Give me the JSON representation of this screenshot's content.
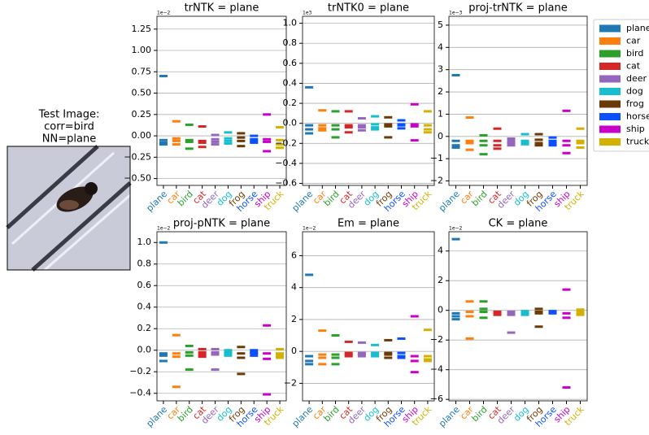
{
  "image_panel": {
    "title_lines": [
      "Test Image:",
      "corr=bird",
      "NN=plane"
    ]
  },
  "legend": [
    {
      "name": "plane",
      "color": "#1f77b4"
    },
    {
      "name": "car",
      "color": "#ff7f0e"
    },
    {
      "name": "bird",
      "color": "#2ca02c"
    },
    {
      "name": "cat",
      "color": "#d62728"
    },
    {
      "name": "deer",
      "color": "#9467bd"
    },
    {
      "name": "dog",
      "color": "#17becf"
    },
    {
      "name": "frog",
      "color": "#6b3a06"
    },
    {
      "name": "horse",
      "color": "#0a50ff"
    },
    {
      "name": "ship",
      "color": "#c800c8"
    },
    {
      "name": "truck",
      "color": "#d4b000"
    }
  ],
  "chart_data": [
    {
      "type": "dash",
      "title": "trNTK = plane",
      "scale_label": "1e−2",
      "categories": [
        "plane",
        "car",
        "bird",
        "cat",
        "deer",
        "dog",
        "frog",
        "horse",
        "ship",
        "truck"
      ],
      "values": [
        [
          0.7,
          -0.05,
          -0.1,
          -0.08
        ],
        [
          0.17,
          -0.03,
          -0.06,
          -0.1
        ],
        [
          0.13,
          -0.05,
          -0.07,
          -0.15
        ],
        [
          0.11,
          -0.06,
          -0.08,
          -0.13
        ],
        [
          0.01,
          -0.04,
          -0.07,
          -0.1
        ],
        [
          0.04,
          -0.03,
          -0.06,
          -0.09
        ],
        [
          0.03,
          -0.02,
          -0.06,
          -0.12
        ],
        [
          0.0,
          -0.04,
          -0.06,
          -0.08
        ],
        [
          0.25,
          -0.04,
          -0.07,
          -0.18
        ],
        [
          0.1,
          -0.05,
          -0.1,
          -0.14
        ]
      ],
      "ylim": [
        -0.58,
        1.4
      ],
      "yticks": [
        {
          "value": -0.5,
          "label": "−0.50"
        },
        {
          "value": -0.25,
          "label": "−0.25"
        },
        {
          "value": 0,
          "label": "0.00"
        },
        {
          "value": 0.25,
          "label": "0.25"
        },
        {
          "value": 0.5,
          "label": "0.50"
        },
        {
          "value": 0.75,
          "label": "0.75"
        },
        {
          "value": 1,
          "label": "1.00"
        },
        {
          "value": 1.25,
          "label": "1.25"
        }
      ],
      "grid": true
    },
    {
      "type": "dash",
      "title": "trNTK0 = plane",
      "scale_label": "1e3",
      "categories": [
        "plane",
        "car",
        "bird",
        "cat",
        "deer",
        "dog",
        "frog",
        "horse",
        "ship",
        "truck"
      ],
      "values": [
        [
          0.36,
          -0.02,
          -0.06,
          -0.1
        ],
        [
          0.13,
          -0.02,
          -0.05,
          -0.07
        ],
        [
          0.12,
          -0.02,
          -0.06,
          -0.14
        ],
        [
          0.12,
          -0.02,
          -0.04,
          -0.09
        ],
        [
          0.05,
          -0.02,
          -0.04,
          -0.07
        ],
        [
          0.07,
          -0.01,
          -0.04,
          -0.06
        ],
        [
          0.06,
          -0.01,
          -0.03,
          -0.14
        ],
        [
          0.03,
          -0.01,
          -0.02,
          -0.05
        ],
        [
          0.19,
          -0.01,
          -0.03,
          -0.17
        ],
        [
          0.12,
          -0.02,
          -0.06,
          -0.09
        ]
      ],
      "ylim": [
        -0.62,
        1.07
      ],
      "yticks": [
        {
          "value": -0.6,
          "label": "−0.6"
        },
        {
          "value": -0.4,
          "label": "−0.4"
        },
        {
          "value": -0.2,
          "label": "−0.2"
        },
        {
          "value": 0,
          "label": "0.0"
        },
        0.2,
        0.4,
        0.6,
        0.8,
        {
          "value": 1,
          "label": "1.0"
        }
      ],
      "grid": true
    },
    {
      "type": "dash",
      "title": "proj-trNTK = plane",
      "scale_label": "1e−3",
      "categories": [
        "plane",
        "car",
        "bird",
        "cat",
        "deer",
        "dog",
        "frog",
        "horse",
        "ship",
        "truck"
      ],
      "values": [
        [
          2.75,
          -0.2,
          -0.4,
          -0.5
        ],
        [
          0.85,
          -0.2,
          -0.3,
          -0.6
        ],
        [
          0.05,
          -0.2,
          -0.4,
          -0.8
        ],
        [
          0.35,
          -0.2,
          -0.4,
          -0.55
        ],
        [
          -0.1,
          -0.2,
          -0.3,
          -0.4
        ],
        [
          0.1,
          -0.2,
          -0.3,
          -0.35
        ],
        [
          0.1,
          -0.15,
          -0.3,
          -0.4
        ],
        [
          -0.05,
          -0.2,
          -0.3,
          -0.4
        ],
        [
          1.15,
          -0.2,
          -0.4,
          -0.75
        ],
        [
          0.35,
          -0.2,
          -0.3,
          -0.5
        ]
      ],
      "ylim": [
        -2.2,
        5.4
      ],
      "yticks": [
        {
          "value": -2,
          "label": "−2"
        },
        {
          "value": -1,
          "label": "−1"
        },
        0,
        1,
        2,
        3,
        4,
        5
      ],
      "grid": true
    },
    {
      "type": "dash",
      "title": "proj-pNTK = plane",
      "scale_label": "1e−2",
      "categories": [
        "plane",
        "car",
        "bird",
        "cat",
        "deer",
        "dog",
        "frog",
        "horse",
        "ship",
        "truck"
      ],
      "values": [
        [
          1.0,
          -0.03,
          -0.05,
          -0.1
        ],
        [
          0.14,
          -0.03,
          -0.06,
          -0.34
        ],
        [
          0.04,
          -0.02,
          -0.05,
          -0.18
        ],
        [
          0.01,
          -0.02,
          -0.04,
          -0.06
        ],
        [
          0.01,
          -0.02,
          -0.04,
          -0.18
        ],
        [
          0.0,
          -0.02,
          -0.03,
          -0.05
        ],
        [
          0.03,
          -0.03,
          -0.07,
          -0.22
        ],
        [
          0.0,
          -0.02,
          -0.03,
          -0.05
        ],
        [
          0.23,
          -0.03,
          -0.08,
          -0.41
        ],
        [
          0.01,
          -0.03,
          -0.05,
          -0.07
        ]
      ],
      "ylim": [
        -0.47,
        1.1
      ],
      "yticks": [
        {
          "value": -0.4,
          "label": "−0.4"
        },
        {
          "value": -0.2,
          "label": "−0.2"
        },
        {
          "value": 0,
          "label": "0.0"
        },
        0.2,
        0.4,
        0.6,
        0.8,
        {
          "value": 1,
          "label": "1.0"
        }
      ],
      "grid": true
    },
    {
      "type": "dash",
      "title": "Em = plane",
      "scale_label": "1e−2",
      "categories": [
        "plane",
        "car",
        "bird",
        "cat",
        "deer",
        "dog",
        "frog",
        "horse",
        "ship",
        "truck"
      ],
      "values": [
        [
          4.8,
          -0.3,
          -0.6,
          -0.8
        ],
        [
          1.3,
          -0.2,
          -0.4,
          -0.8
        ],
        [
          1.0,
          -0.2,
          -0.4,
          -0.8
        ],
        [
          0.6,
          -0.1,
          -0.3,
          -0.2
        ],
        [
          0.55,
          -0.1,
          -0.2,
          -0.3
        ],
        [
          0.4,
          -0.1,
          -0.2,
          -0.3
        ],
        [
          0.7,
          -0.1,
          -0.2,
          -0.4
        ],
        [
          0.8,
          -0.1,
          -0.3,
          -0.4
        ],
        [
          2.2,
          -0.3,
          -0.6,
          -1.3
        ],
        [
          1.35,
          -0.3,
          -0.5,
          -0.6
        ]
      ],
      "ylim": [
        -3.1,
        7.5
      ],
      "yticks": [
        {
          "value": -2,
          "label": "−2"
        },
        0,
        2,
        4,
        6
      ],
      "grid": true
    },
    {
      "type": "dash",
      "title": "CK = plane",
      "scale_label": "1e−2",
      "categories": [
        "plane",
        "car",
        "bird",
        "cat",
        "deer",
        "dog",
        "frog",
        "horse",
        "ship",
        "truck"
      ],
      "values": [
        [
          4.8,
          -0.2,
          -0.4,
          -0.6
        ],
        [
          0.6,
          -0.1,
          -0.4,
          -1.9
        ],
        [
          0.6,
          0.1,
          -0.1,
          -0.5
        ],
        [
          -0.1,
          -0.2,
          -0.3,
          -0.2
        ],
        [
          -0.1,
          -0.2,
          -0.3,
          -1.5
        ],
        [
          -0.05,
          -0.1,
          -0.2,
          -0.3
        ],
        [
          0.1,
          -0.1,
          -0.2,
          -1.1
        ],
        [
          -0.05,
          -0.1,
          -0.15,
          -0.2
        ],
        [
          1.4,
          -0.2,
          -0.5,
          -5.2
        ],
        [
          0.05,
          -0.1,
          -0.2,
          -0.3
        ]
      ],
      "ylim": [
        -6.1,
        5.3
      ],
      "yticks": [
        {
          "value": -6,
          "label": "−6"
        },
        {
          "value": -4,
          "label": "−4"
        },
        {
          "value": -2,
          "label": "−2"
        },
        0,
        2,
        4
      ],
      "grid": true
    }
  ]
}
